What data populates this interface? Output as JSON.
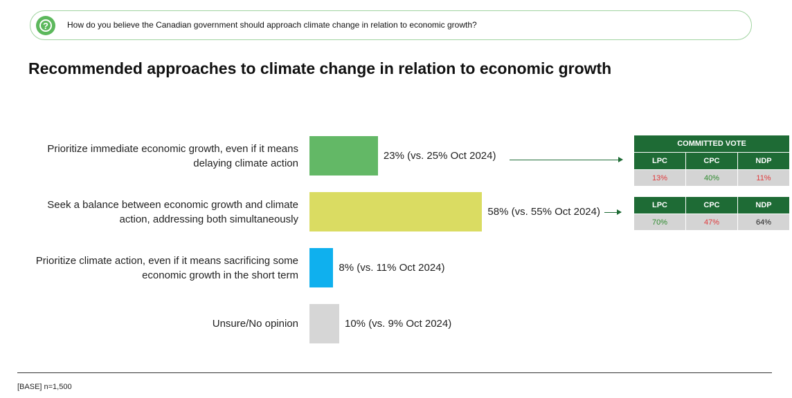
{
  "question": "How do you believe the Canadian government should approach climate change in relation to economic growth?",
  "base": "[BASE] n=1,500",
  "chart_data": {
    "type": "bar",
    "orientation": "horizontal",
    "title": "Recommended approaches to climate change in relation to economic growth",
    "categories": [
      [
        "Prioritize immediate economic growth, even if it means",
        "delaying climate action"
      ],
      [
        "Seek a balance between economic growth and climate",
        "action, addressing both simultaneously"
      ],
      [
        "Prioritize climate action, even if it means sacrificing some",
        "economic growth in the short term"
      ],
      [
        "Unsure/No opinion"
      ]
    ],
    "values": [
      23,
      58,
      8,
      10
    ],
    "labels": [
      "23% (vs. 25% Oct 2024)",
      "58% (vs. 55% Oct 2024)",
      "8% (vs. 11% Oct 2024)",
      "10% (vs. 9% Oct 2024)"
    ],
    "colors": [
      "#63b866",
      "#dadc62",
      "#0fb0ee",
      "#d6d6d6"
    ],
    "unit": "%"
  },
  "committed_vote": {
    "title": "COMMITTED VOTE",
    "tables": [
      {
        "headers": [
          "LPC",
          "CPC",
          "NDP"
        ],
        "values": [
          "13%",
          "40%",
          "11%"
        ],
        "colors": [
          "#e0393b",
          "#2e8b2e",
          "#e0393b"
        ]
      },
      {
        "headers": [
          "LPC",
          "CPC",
          "NDP"
        ],
        "values": [
          "70%",
          "47%",
          "64%"
        ],
        "colors": [
          "#2e8b2e",
          "#e0393b",
          "#222222"
        ]
      }
    ]
  }
}
